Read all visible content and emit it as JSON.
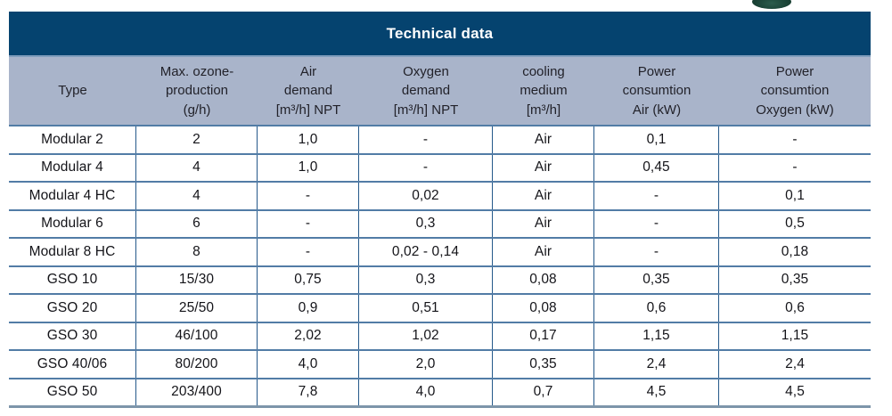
{
  "title": "Technical data",
  "colors": {
    "header_bar": "#05436f",
    "header_row_bg": "#a9b4ca",
    "row_separator": "#527ca6",
    "column_border": "#25598a",
    "bottom_border": "#7d95aa",
    "title_text": "#ffffff",
    "logo_fragment_green": "#1b4437"
  },
  "icons": {
    "logo_fragment": "partially-cropped-dark-green-ellipse-top-right"
  },
  "table": {
    "columns": [
      {
        "lines": [
          "Type"
        ]
      },
      {
        "lines": [
          "Max. ozone-",
          "production",
          "(g/h)"
        ]
      },
      {
        "lines": [
          "Air",
          "demand",
          "[m³/h] NPT"
        ]
      },
      {
        "lines": [
          "Oxygen",
          "demand",
          "[m³/h] NPT"
        ]
      },
      {
        "lines": [
          "cooling",
          "medium",
          "[m³/h]"
        ]
      },
      {
        "lines": [
          "Power",
          "consumtion",
          "Air (kW)"
        ]
      },
      {
        "lines": [
          "Power",
          "consumtion",
          "Oxygen (kW)"
        ]
      }
    ],
    "rows": [
      [
        "Modular 2",
        "2",
        "1,0",
        "-",
        "Air",
        "0,1",
        "-"
      ],
      [
        "Modular 4",
        "4",
        "1,0",
        "-",
        "Air",
        "0,45",
        "-"
      ],
      [
        "Modular 4 HC",
        "4",
        "-",
        "0,02",
        "Air",
        "-",
        "0,1"
      ],
      [
        "Modular 6",
        "6",
        "-",
        "0,3",
        "Air",
        "-",
        "0,5"
      ],
      [
        "Modular 8 HC",
        "8",
        "-",
        "0,02 - 0,14",
        "Air",
        "-",
        "0,18"
      ],
      [
        "GSO 10",
        "15/30",
        "0,75",
        "0,3",
        "0,08",
        "0,35",
        "0,35"
      ],
      [
        "GSO 20",
        "25/50",
        "0,9",
        "0,51",
        "0,08",
        "0,6",
        "0,6"
      ],
      [
        "GSO 30",
        "46/100",
        "2,02",
        "1,02",
        "0,17",
        "1,15",
        "1,15"
      ],
      [
        "GSO 40/06",
        "80/200",
        "4,0",
        "2,0",
        "0,35",
        "2,4",
        "2,4"
      ],
      [
        "GSO 50",
        "203/400",
        "7,8",
        "4,0",
        "0,7",
        "4,5",
        "4,5"
      ]
    ]
  }
}
